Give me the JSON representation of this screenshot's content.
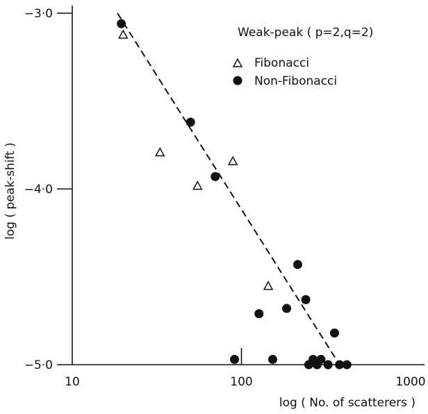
{
  "chart_data": {
    "type": "scatter",
    "title": "",
    "xlabel": "log ( No. of scatterers )",
    "ylabel": "log ( peak-shift )",
    "x_scale": "log",
    "xlim": [
      10,
      1000
    ],
    "ylim": [
      -5.0,
      -3.0
    ],
    "x_ticks": [
      10,
      100,
      1000
    ],
    "x_tick_labels": [
      "10",
      "100",
      "1000"
    ],
    "y_ticks": [
      -3.0,
      -4.0,
      -5.0
    ],
    "y_tick_labels": [
      "−3·0",
      "−4·0",
      "−5·0"
    ],
    "grid": false,
    "legend_position": "top-right",
    "legend_title": "Weak-peak ( p=2,q=2)",
    "series": [
      {
        "name": "Fibonacci",
        "marker": "triangle-open",
        "points": [
          [
            20,
            -3.12
          ],
          [
            33,
            -3.79
          ],
          [
            55,
            -3.98
          ],
          [
            89,
            -3.84
          ],
          [
            144,
            -4.55
          ]
        ]
      },
      {
        "name": "Non-Fibonacci",
        "marker": "circle-filled",
        "points": [
          [
            19.5,
            -3.06
          ],
          [
            50,
            -3.62
          ],
          [
            70,
            -3.93
          ],
          [
            91,
            -4.97
          ],
          [
            127,
            -4.71
          ],
          [
            153,
            -4.97
          ],
          [
            185,
            -4.68
          ],
          [
            215,
            -4.43
          ],
          [
            240,
            -4.63
          ],
          [
            250,
            -5.0
          ],
          [
            265,
            -4.97
          ],
          [
            280,
            -5.0
          ],
          [
            295,
            -4.97
          ],
          [
            325,
            -5.0
          ],
          [
            355,
            -4.82
          ],
          [
            380,
            -5.0
          ],
          [
            420,
            -5.0
          ]
        ]
      }
    ],
    "fit_line": {
      "style": "dashed",
      "points": [
        [
          18.5,
          -3.0
        ],
        [
          380,
          -5.0
        ]
      ]
    },
    "annotation": {
      "type": "tick",
      "x": 100,
      "y": -5.0
    }
  }
}
